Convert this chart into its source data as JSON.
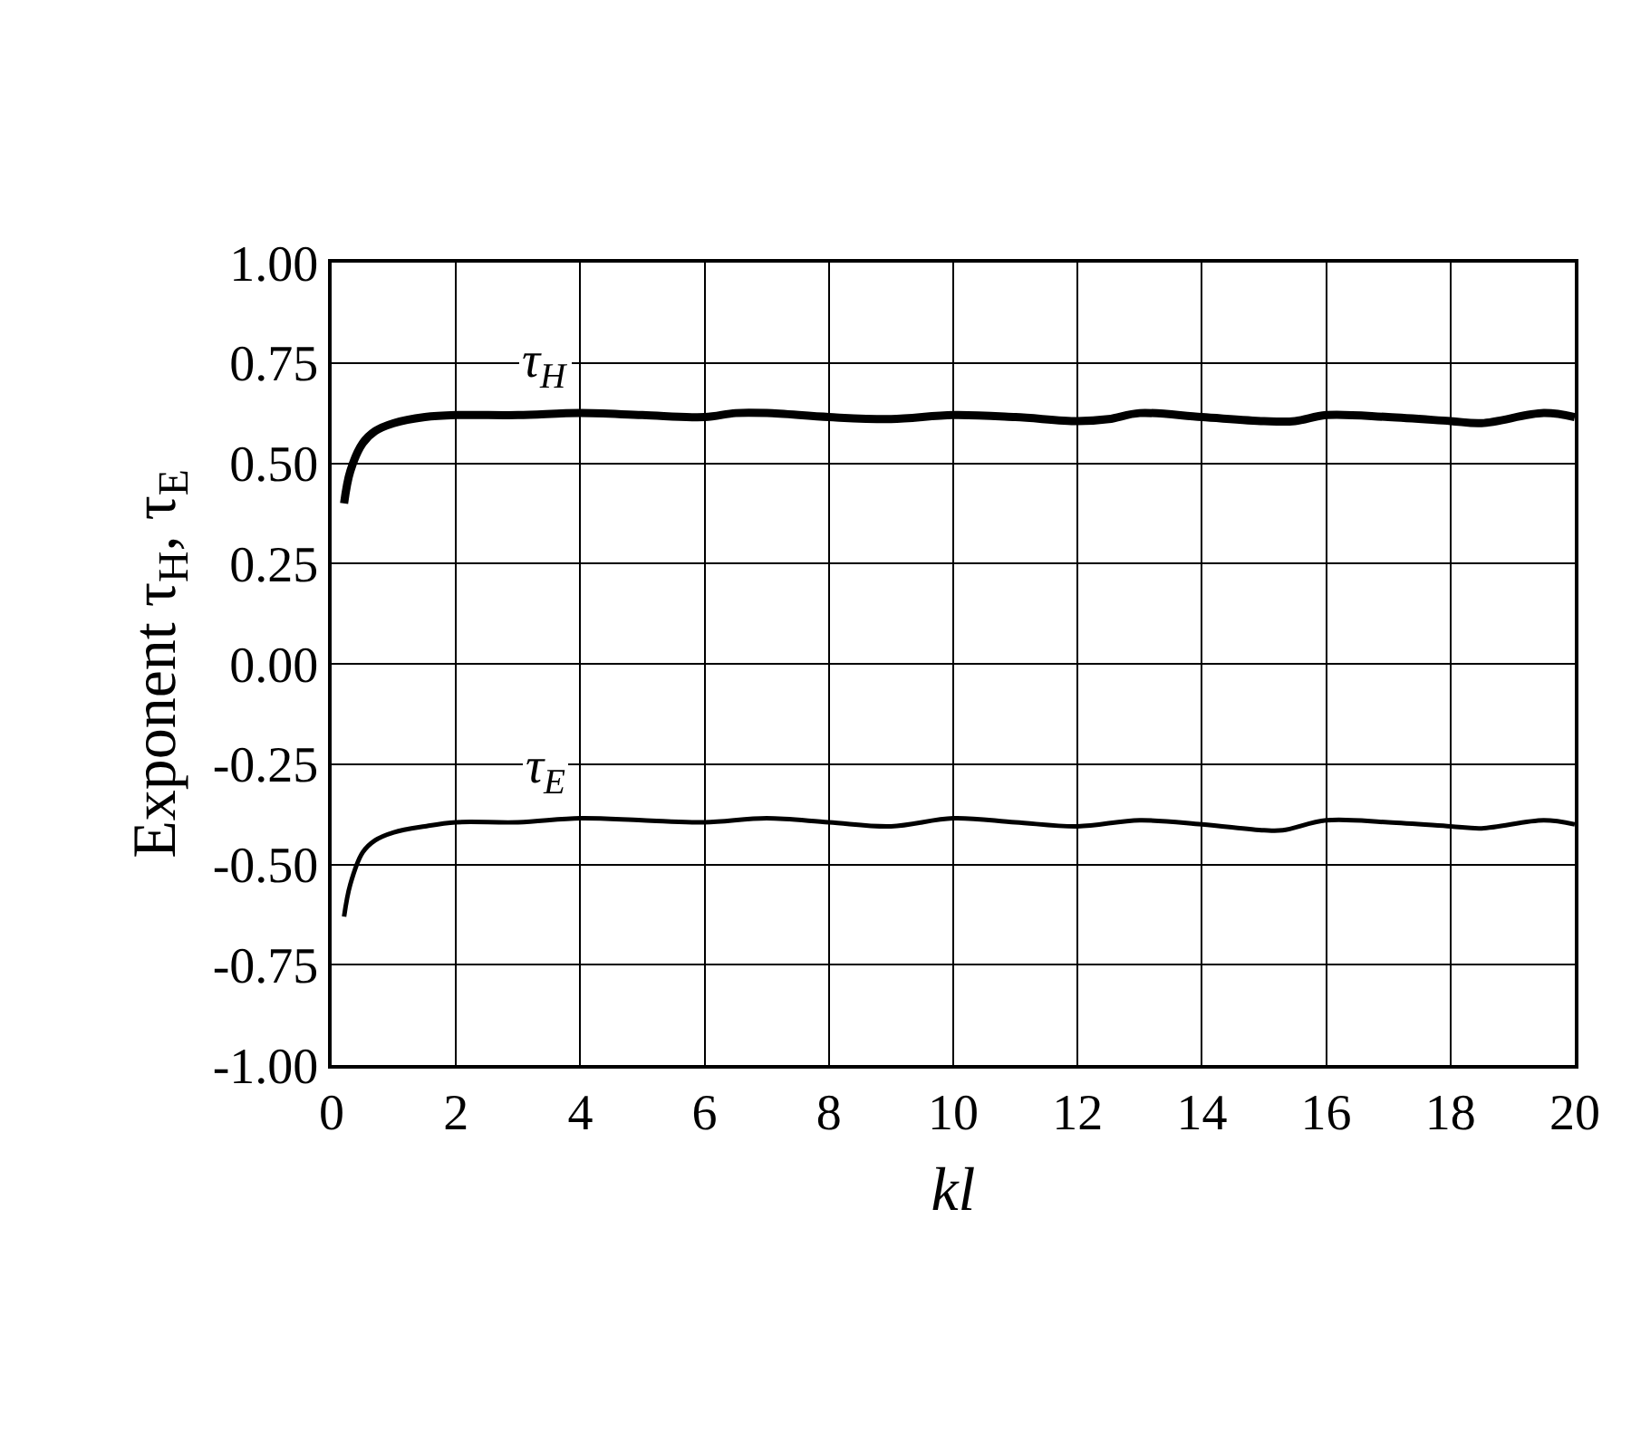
{
  "chart_data": {
    "type": "line",
    "xlabel": "kl",
    "ylabel": "Exponent τ$_{H}$, τ$_{E}$",
    "xlim": [
      0,
      20
    ],
    "xticks": [
      0,
      2,
      4,
      6,
      8,
      10,
      12,
      14,
      16,
      18,
      20
    ],
    "ylim": [
      -1.0,
      1.0
    ],
    "yticks": [
      {
        "value": 1.0,
        "label": "1.00"
      },
      {
        "value": 0.75,
        "label": "0.75"
      },
      {
        "value": 0.5,
        "label": "0.50"
      },
      {
        "value": 0.25,
        "label": "0.25"
      },
      {
        "value": 0.0,
        "label": "0.00"
      },
      {
        "value": -0.25,
        "label": "-0.25"
      },
      {
        "value": -0.5,
        "label": "-0.50"
      },
      {
        "value": -0.75,
        "label": "-0.75"
      },
      {
        "value": -1.0,
        "label": "-1.00"
      }
    ],
    "grid": true,
    "legend": false,
    "marker": "none",
    "line_style": "solid",
    "series": [
      {
        "name": "τ$_{H}$",
        "color": "#000000",
        "x": [
          0.2,
          0.3,
          0.5,
          0.7,
          1,
          1.5,
          2,
          3,
          4,
          5,
          6,
          6.5,
          7,
          8,
          9,
          10,
          11,
          12,
          12.5,
          13,
          14,
          15,
          15.5,
          16,
          17,
          18,
          18.5,
          19.5,
          20
        ],
        "values": [
          0.4,
          0.48,
          0.55,
          0.58,
          0.6,
          0.615,
          0.62,
          0.62,
          0.625,
          0.62,
          0.615,
          0.625,
          0.625,
          0.615,
          0.61,
          0.62,
          0.615,
          0.605,
          0.61,
          0.625,
          0.615,
          0.605,
          0.605,
          0.62,
          0.615,
          0.605,
          0.6,
          0.625,
          0.615
        ]
      },
      {
        "name": "τ$_{E}$",
        "color": "#000000",
        "x": [
          0.2,
          0.3,
          0.5,
          0.7,
          1,
          1.5,
          2,
          3,
          4,
          5,
          6,
          7,
          8,
          9,
          10,
          11,
          12,
          13,
          14,
          15,
          15.3,
          16,
          17,
          18,
          18.5,
          19.5,
          20
        ],
        "values": [
          -0.63,
          -0.55,
          -0.47,
          -0.44,
          -0.42,
          -0.405,
          -0.395,
          -0.395,
          -0.385,
          -0.39,
          -0.395,
          -0.385,
          -0.395,
          -0.405,
          -0.385,
          -0.395,
          -0.405,
          -0.39,
          -0.4,
          -0.415,
          -0.415,
          -0.39,
          -0.395,
          -0.405,
          -0.41,
          -0.39,
          -0.4
        ]
      }
    ]
  }
}
